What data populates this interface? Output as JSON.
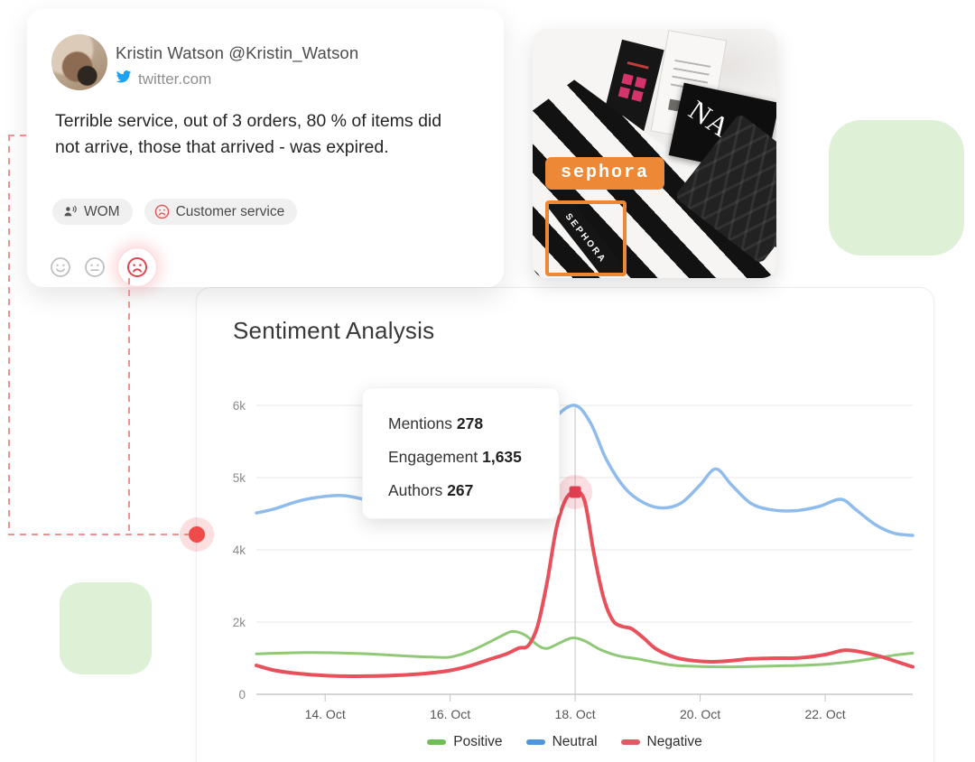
{
  "tweet_card": {
    "author": "Kristin Watson @Kristin_Watson",
    "source_domain": "twitter.com",
    "body": "Terrible service, out of 3 orders, 80 % of items did not arrive, those that arrived - was expired.",
    "tags": [
      {
        "icon": "wom-icon",
        "label": "WOM"
      },
      {
        "icon": "sad-face-icon",
        "label": "Customer service"
      }
    ],
    "sentiment_options": [
      {
        "id": "positive",
        "icon": "smile-face-icon",
        "selected": false
      },
      {
        "id": "neutral",
        "icon": "neutral-face-icon",
        "selected": false
      },
      {
        "id": "negative",
        "icon": "sad-face-icon",
        "selected": true
      }
    ]
  },
  "image_card": {
    "detection_label": "sephora",
    "detection_box_text": "SEPHORA",
    "product_text": "NARS",
    "accent_color": "#ED8936"
  },
  "chart_card": {
    "title": "Sentiment Analysis",
    "tooltip_rows": [
      {
        "label": "Mentions",
        "value": "278"
      },
      {
        "label": "Engagement",
        "value": "1,635"
      },
      {
        "label": "Authors",
        "value": "267"
      }
    ]
  },
  "chart_data": {
    "type": "line",
    "title": "Sentiment Analysis",
    "x_ticks": [
      {
        "label": "14. Oct",
        "day": 14
      },
      {
        "label": "16. Oct",
        "day": 16
      },
      {
        "label": "18. Oct",
        "day": 18
      },
      {
        "label": "20. Oct",
        "day": 20
      },
      {
        "label": "22. Oct",
        "day": 22
      }
    ],
    "x_domain_days": [
      12.9,
      23.4
    ],
    "y_ticks": [
      {
        "label": "0",
        "value": 0
      },
      {
        "label": "2k",
        "value": 2000
      },
      {
        "label": "4k",
        "value": 4000
      },
      {
        "label": "5k",
        "value": 5000
      },
      {
        "label": "6k",
        "value": 6000
      }
    ],
    "y_axis_note": "gridlines equally spaced (non-linear value axis as in source)",
    "grid": true,
    "legend_position": "bottom",
    "crosshair_day": 18,
    "marker": {
      "series": "Negative",
      "day": 18,
      "value": 4800,
      "color": "#E23E52",
      "halo": "rgba(232,80,92,0.18)"
    },
    "series": [
      {
        "name": "Positive",
        "line_color": "#8FC977",
        "legend_color": "#70BE56",
        "width": 3,
        "points": [
          [
            12.9,
            1120
          ],
          [
            13.3,
            1140
          ],
          [
            13.7,
            1155
          ],
          [
            14.1,
            1150
          ],
          [
            14.5,
            1130
          ],
          [
            14.9,
            1100
          ],
          [
            15.3,
            1060
          ],
          [
            15.7,
            1030
          ],
          [
            16.0,
            1030
          ],
          [
            16.3,
            1180
          ],
          [
            16.6,
            1420
          ],
          [
            16.85,
            1640
          ],
          [
            17.0,
            1740
          ],
          [
            17.2,
            1640
          ],
          [
            17.4,
            1360
          ],
          [
            17.55,
            1270
          ],
          [
            17.75,
            1420
          ],
          [
            17.95,
            1560
          ],
          [
            18.15,
            1480
          ],
          [
            18.4,
            1240
          ],
          [
            18.7,
            1060
          ],
          [
            19.0,
            980
          ],
          [
            19.3,
            880
          ],
          [
            19.6,
            800
          ],
          [
            20.0,
            770
          ],
          [
            20.4,
            760
          ],
          [
            20.8,
            770
          ],
          [
            21.2,
            785
          ],
          [
            21.6,
            800
          ],
          [
            22.0,
            830
          ],
          [
            22.4,
            900
          ],
          [
            22.8,
            1000
          ],
          [
            23.1,
            1080
          ],
          [
            23.4,
            1140
          ]
        ]
      },
      {
        "name": "Neutral",
        "line_color": "#8FBCEC",
        "legend_color": "#4D95DC",
        "width": 3.5,
        "points": [
          [
            12.9,
            4510
          ],
          [
            13.2,
            4570
          ],
          [
            13.6,
            4680
          ],
          [
            14.0,
            4740
          ],
          [
            14.3,
            4750
          ],
          [
            14.7,
            4680
          ],
          [
            15.0,
            4590
          ],
          [
            15.4,
            4560
          ],
          [
            15.8,
            4620
          ],
          [
            16.2,
            4700
          ],
          [
            16.6,
            4850
          ],
          [
            17.0,
            5100
          ],
          [
            17.4,
            5500
          ],
          [
            17.7,
            5850
          ],
          [
            18.0,
            6000
          ],
          [
            18.25,
            5750
          ],
          [
            18.5,
            5250
          ],
          [
            18.8,
            4850
          ],
          [
            19.1,
            4650
          ],
          [
            19.4,
            4580
          ],
          [
            19.7,
            4650
          ],
          [
            20.0,
            4900
          ],
          [
            20.25,
            5120
          ],
          [
            20.5,
            4900
          ],
          [
            20.8,
            4650
          ],
          [
            21.1,
            4560
          ],
          [
            21.5,
            4540
          ],
          [
            21.9,
            4600
          ],
          [
            22.25,
            4700
          ],
          [
            22.5,
            4550
          ],
          [
            22.8,
            4350
          ],
          [
            23.1,
            4230
          ],
          [
            23.4,
            4200
          ]
        ]
      },
      {
        "name": "Negative",
        "line_color": "#E8505C",
        "legend_color": "#E05A64",
        "width": 4,
        "points": [
          [
            12.9,
            800
          ],
          [
            13.2,
            660
          ],
          [
            13.6,
            570
          ],
          [
            14.0,
            520
          ],
          [
            14.4,
            500
          ],
          [
            14.8,
            505
          ],
          [
            15.2,
            530
          ],
          [
            15.6,
            575
          ],
          [
            16.0,
            660
          ],
          [
            16.3,
            780
          ],
          [
            16.6,
            950
          ],
          [
            16.9,
            1120
          ],
          [
            17.1,
            1280
          ],
          [
            17.25,
            1350
          ],
          [
            17.4,
            1900
          ],
          [
            17.55,
            3100
          ],
          [
            17.7,
            4300
          ],
          [
            17.85,
            4700
          ],
          [
            18.0,
            4800
          ],
          [
            18.15,
            4680
          ],
          [
            18.3,
            3900
          ],
          [
            18.45,
            2700
          ],
          [
            18.6,
            2050
          ],
          [
            18.75,
            1880
          ],
          [
            18.9,
            1820
          ],
          [
            19.1,
            1550
          ],
          [
            19.3,
            1250
          ],
          [
            19.6,
            1020
          ],
          [
            19.9,
            930
          ],
          [
            20.2,
            900
          ],
          [
            20.5,
            930
          ],
          [
            20.8,
            980
          ],
          [
            21.2,
            1000
          ],
          [
            21.6,
            1010
          ],
          [
            22.0,
            1100
          ],
          [
            22.3,
            1220
          ],
          [
            22.55,
            1180
          ],
          [
            22.9,
            1040
          ],
          [
            23.15,
            900
          ],
          [
            23.4,
            760
          ]
        ]
      }
    ]
  },
  "decor": {
    "connector_color": "#F49090",
    "dot_color": "#EF4B4B",
    "square_color": "#DEF0D5"
  }
}
